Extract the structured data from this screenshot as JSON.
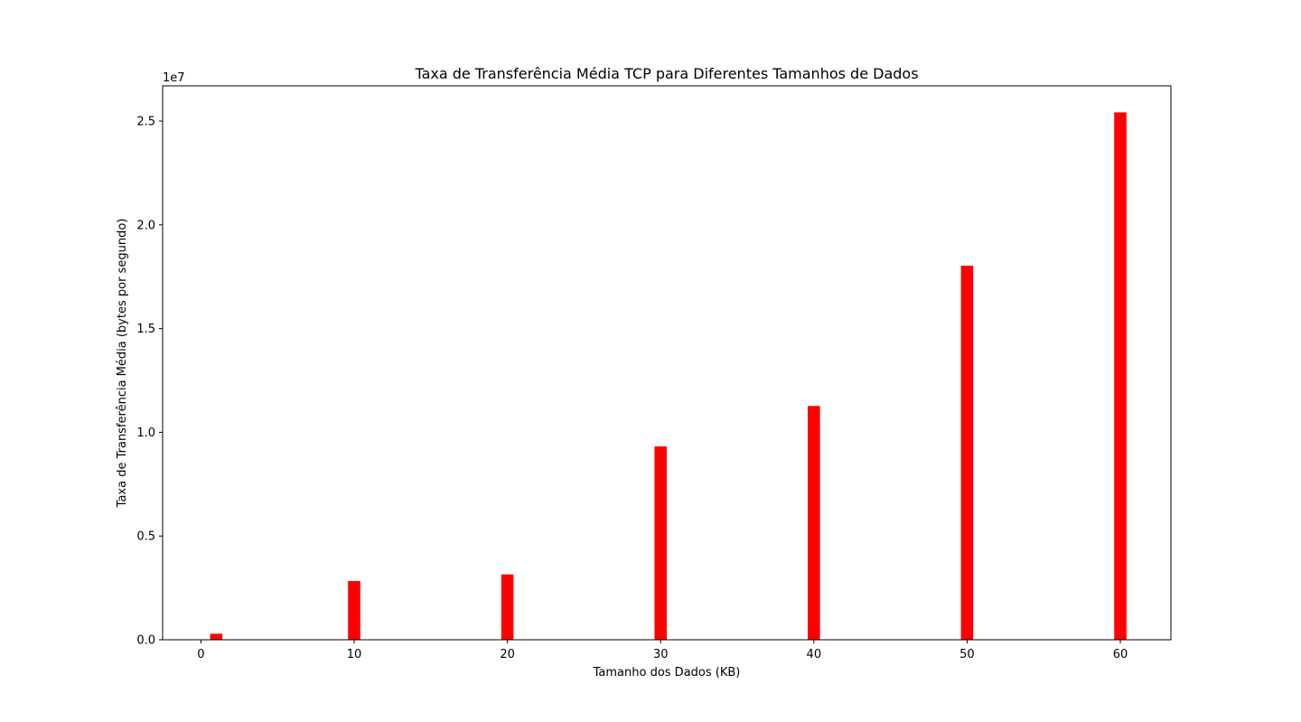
{
  "chart_data": {
    "type": "bar",
    "title": "Taxa de Transferência Média TCP para Diferentes Tamanhos de Dados",
    "xlabel": "Tamanho dos Dados (KB)",
    "ylabel": "Taxa de Transferência Média (bytes por segundo)",
    "y_offset_label": "1e7",
    "x": [
      1,
      10,
      20,
      30,
      40,
      50,
      60
    ],
    "values": [
      290000,
      2830000,
      3150000,
      9320000,
      11270000,
      18030000,
      25420000
    ],
    "bar_color": "#ff0000",
    "bar_width": 0.8,
    "xlim": [
      -2.5,
      63.3
    ],
    "ylim": [
      0,
      26700000
    ],
    "x_ticks": [
      0,
      10,
      20,
      30,
      40,
      50,
      60
    ],
    "x_tick_labels": [
      "0",
      "10",
      "20",
      "30",
      "40",
      "50",
      "60"
    ],
    "y_ticks": [
      0,
      5000000,
      10000000,
      15000000,
      20000000,
      25000000
    ],
    "y_tick_labels": [
      "0.0",
      "0.5",
      "1.0",
      "1.5",
      "2.0",
      "2.5"
    ],
    "grid": false,
    "legend": "none"
  }
}
